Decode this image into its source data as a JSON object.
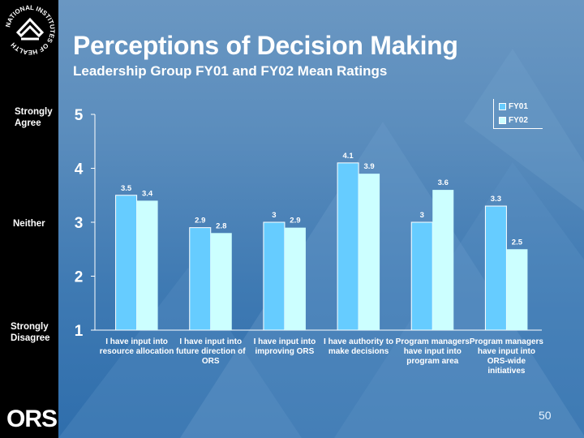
{
  "slide": {
    "title": "Perceptions of Decision Making",
    "subtitle": "Leadership Group FY01 and FY02 Mean Ratings",
    "logo_text": "NATIONAL INSTITUTES OF HEALTH",
    "footer_logo": "ORS",
    "page_number": "50",
    "scale_labels": {
      "strongly_agree": "Strongly Agree",
      "neither": "Neither",
      "strongly_disagree": "Strongly Disagree"
    }
  },
  "colors": {
    "fy01": "#66ccff",
    "fy02": "#ccffff",
    "background": "#4a84ba",
    "sidebar": "#000000"
  },
  "chart_data": {
    "type": "bar",
    "title": "Perceptions of Decision Making",
    "subtitle": "Leadership Group FY01 and FY02 Mean Ratings",
    "xlabel": "",
    "ylabel": "",
    "ylim": [
      1,
      5
    ],
    "yticks": [
      "1",
      "2",
      "3",
      "4",
      "5"
    ],
    "grid": false,
    "legend_position": "top-right",
    "categories": [
      "I have input into resource allocation",
      "I have input into future direction of ORS",
      "I have input into improving ORS",
      "I have authority to make decisions",
      "Program managers have input into program area",
      "Program managers have input into ORS-wide initiatives"
    ],
    "series": [
      {
        "name": "FY01",
        "values": [
          3.5,
          2.9,
          3,
          4.1,
          3,
          3.3
        ],
        "labels": [
          "3.5",
          "2.9",
          "3",
          "4.1",
          "3",
          "3.3"
        ]
      },
      {
        "name": "FY02",
        "values": [
          3.4,
          2.8,
          2.9,
          3.9,
          3.6,
          2.5
        ],
        "labels": [
          "3.4",
          "2.8",
          "2.9",
          "3.9",
          "3.6",
          "2.5"
        ]
      }
    ]
  }
}
